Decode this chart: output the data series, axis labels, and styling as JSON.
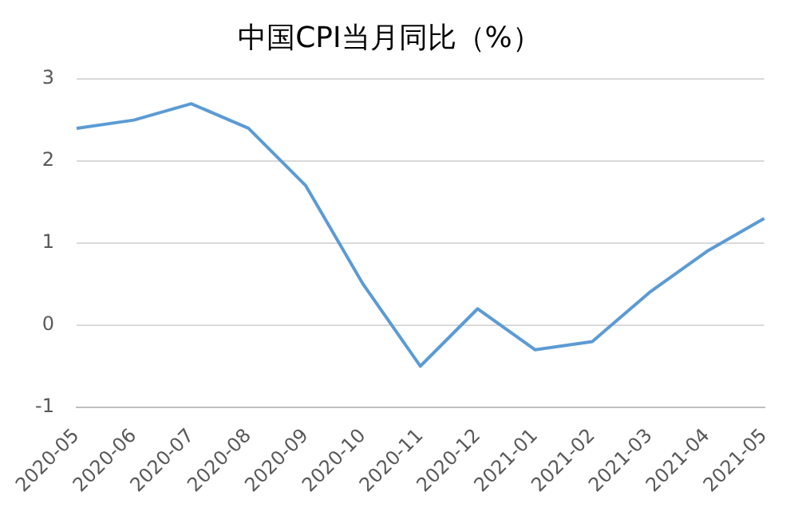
{
  "chart_data": {
    "type": "line",
    "title": "中国CPI当月同比（%）",
    "categories": [
      "2020-05",
      "2020-06",
      "2020-07",
      "2020-08",
      "2020-09",
      "2020-10",
      "2020-11",
      "2020-12",
      "2021-01",
      "2021-02",
      "2021-03",
      "2021-04",
      "2021-05"
    ],
    "series": [
      {
        "color": "#5b9bd5",
        "values": [
          2.4,
          2.5,
          2.7,
          2.4,
          1.7,
          0.5,
          -0.5,
          0.2,
          -0.3,
          -0.2,
          0.4,
          0.9,
          1.3
        ]
      }
    ],
    "ylim": [
      -1,
      3
    ],
    "yticks": [
      -1,
      0,
      1,
      2,
      3
    ],
    "grid": "y",
    "legend": false,
    "marker": "none",
    "line_style": "solid"
  }
}
